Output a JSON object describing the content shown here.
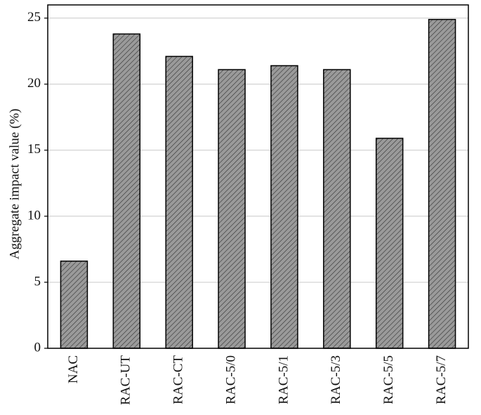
{
  "chart_data": {
    "type": "bar",
    "y_label": "Aggregate impact value (%)",
    "categories": [
      "NAC",
      "RAC-UT",
      "RAC-CT",
      "RAC-5/0",
      "RAC-5/1",
      "RAC-5/3",
      "RAC-5/5",
      "RAC-5/7"
    ],
    "values": [
      6.6,
      23.8,
      22.1,
      21.1,
      21.4,
      21.1,
      15.9,
      24.9
    ],
    "color": "#9a9a9a",
    "ylim": [
      0,
      26
    ],
    "yticks": [
      0,
      5,
      10,
      15,
      20,
      25
    ],
    "grid": true
  }
}
